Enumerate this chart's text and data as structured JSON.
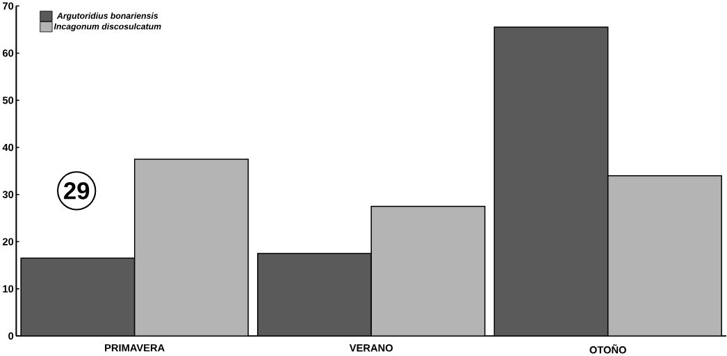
{
  "chart_data": {
    "type": "bar",
    "categories": [
      "PRIMAVERA",
      "VERANO",
      "OTOÑO"
    ],
    "series": [
      {
        "name": "Argutoridius bonariensis",
        "color": "#5a5a5a",
        "values": [
          16.5,
          17.5,
          65.5
        ]
      },
      {
        "name": "Incagonum discosulcatum",
        "color": "#b4b4b4",
        "values": [
          37.5,
          27.5,
          34
        ]
      }
    ],
    "ylim": [
      0,
      70
    ],
    "yticks": [
      0,
      10,
      20,
      30,
      40,
      50,
      60,
      70
    ],
    "legend": "top left",
    "annotations": [
      "29"
    ]
  }
}
